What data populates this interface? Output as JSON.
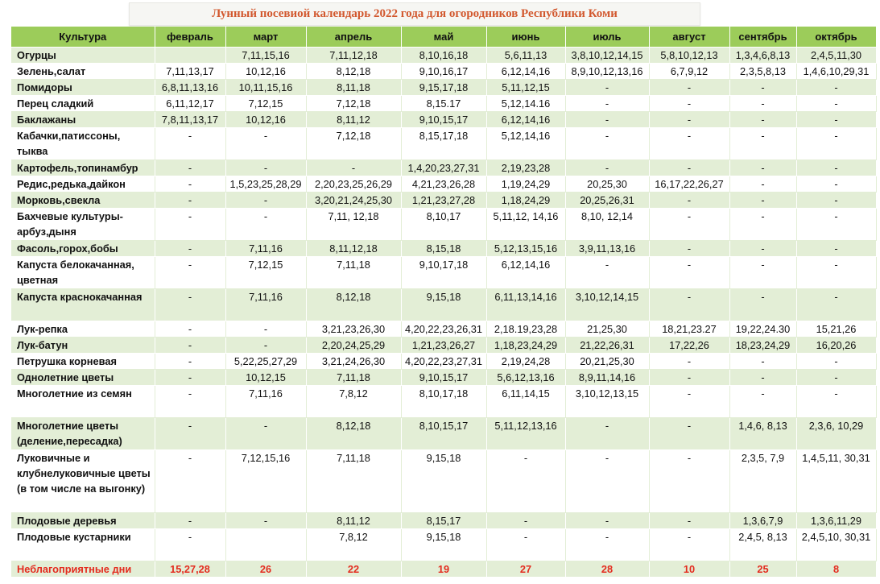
{
  "title": "Лунный посевиой календарь 2022 года для огородников Республики Коми",
  "headers": [
    "Культура",
    "февраль",
    "март",
    "апрель",
    "май",
    "июнь",
    "июль",
    "август",
    "сентябрь",
    "октябрь"
  ],
  "rows": [
    {
      "crop": "Огурцы",
      "cells": [
        "",
        "7,11,15,16",
        "7,11,12,18",
        "8,10,16,18",
        "5,6,11,13",
        "3,8,10,12,14,15",
        "5,8,10,12,13",
        "1,3,4,6,8,13",
        "2,4,5,11,30"
      ]
    },
    {
      "crop": "Зелень,салат",
      "cells": [
        "7,11,13,17",
        "10,12,16",
        "8,12,18",
        "9,10,16,17",
        "6,12,14,16",
        "8,9,10,12,13,16",
        "6,7,9,12",
        "2,3,5,8,13",
        "1,4,6,10,29,31"
      ]
    },
    {
      "crop": "Помидоры",
      "cells": [
        "6,8,11,13,16",
        "10,11,15,16",
        "8,11,18",
        "9,15,17,18",
        "5,11,12,15",
        "-",
        "-",
        "-",
        "-"
      ]
    },
    {
      "crop": "Перец сладкий",
      "cells": [
        "6,11,12,17",
        "7,12,15",
        "7,12,18",
        "8,15.17",
        "5,12,14.16",
        "-",
        "-",
        "-",
        "-"
      ]
    },
    {
      "crop": "Баклажаны",
      "cells": [
        "7,8,11,13,17",
        "10,12,16",
        "8,11,12",
        "9,10,15,17",
        "6,12,14,16",
        "-",
        "-",
        "-",
        "-"
      ]
    },
    {
      "crop": "Кабачки,патиссоны, тыква",
      "cells": [
        "-",
        "-",
        "7,12,18",
        "8,15,17,18",
        "5,12,14,16",
        "-",
        "-",
        "-",
        "-"
      ]
    },
    {
      "crop": "Картофель,топинамбур",
      "cells": [
        "-",
        "-",
        "-",
        "1,4,20,23,27,31",
        "2,19,23,28",
        "-",
        "-",
        "-",
        "-"
      ]
    },
    {
      "crop": "Редис,редька,дайкон",
      "cells": [
        "-",
        "1,5,23,25,28,29",
        "2,20,23,25,26,29",
        "4,21,23,26,28",
        "1,19,24,29",
        "20,25,30",
        "16,17,22,26,27",
        "-",
        "-"
      ]
    },
    {
      "crop": "Морковь,свекла",
      "cells": [
        "-",
        "-",
        "3,20,21,24,25,30",
        "1,21,23,27,28",
        "1,18,24,29",
        "20,25,26,31",
        "-",
        "-",
        "-"
      ]
    },
    {
      "crop": "Бахчевые культуры- арбуз,дыня",
      "cells": [
        "-",
        "-",
        "7,11, 12,18",
        "8,10,17",
        "5,11,12, 14,16",
        "8,10, 12,14",
        "-",
        "-",
        "-"
      ]
    },
    {
      "crop": "Фасоль,горох,бобы",
      "cells": [
        "-",
        "7,11,16",
        "8,11,12,18",
        "8,15,18",
        "5,12,13,15,16",
        "3,9,11,13,16",
        "-",
        "-",
        "-"
      ]
    },
    {
      "crop": "Капуста белокачанная, цветная",
      "cells": [
        "-",
        "7,12,15",
        "7,11,18",
        "9,10,17,18",
        "6,12,14,16",
        "-",
        "-",
        "-",
        "-"
      ]
    },
    {
      "crop": "Капуста краснокачанная",
      "cells": [
        "-",
        "7,11,16",
        "8,12,18",
        "9,15,18",
        "6,11,13,14,16",
        "3,10,12,14,15",
        "-",
        "-",
        "-"
      ]
    },
    {
      "crop": "Лук-репка",
      "cells": [
        "-",
        "-",
        "3,21,23,26,30",
        "4,20,22,23,26,31",
        "2,18.19,23,28",
        "21,25,30",
        "18,21,23.27",
        "19,22,24.30",
        "15,21,26"
      ]
    },
    {
      "crop": "Лук-батун",
      "cells": [
        "-",
        "-",
        "2,20,24,25,29",
        "1,21,23,26,27",
        "1,18,23,24,29",
        "21,22,26,31",
        "17,22,26",
        "18,23,24,29",
        "16,20,26"
      ]
    },
    {
      "crop": "Петрушка корневая",
      "cells": [
        "-",
        "5,22,25,27,29",
        "3,21,24,26,30",
        "4,20,22,23,27,31",
        "2,19,24,28",
        "20,21,25,30",
        "-",
        "-",
        "-"
      ]
    },
    {
      "crop": "Однолетние цветы",
      "cells": [
        "-",
        "10,12,15",
        "7,11,18",
        "9,10,15,17",
        "5,6,12,13,16",
        "8,9,11,14,16",
        "-",
        "-",
        "-"
      ]
    },
    {
      "crop": "Многолетние из семян",
      "cells": [
        "-",
        "7,11,16",
        "7,8,12",
        "8,10,17,18",
        "6,11,14,15",
        "3,10,12,13,15",
        "-",
        "-",
        "-"
      ]
    },
    {
      "crop": "Многолетние цветы (деление,пересадка)",
      "cells": [
        "-",
        "-",
        "8,12,18",
        "8,10,15,17",
        "5,11,12,13,16",
        "-",
        "-",
        "1,4,6, 8,13",
        "2,3,6, 10,29"
      ]
    },
    {
      "crop": "Луковичные и клубнелуковичные цветы (в том числе на выгонку)",
      "cells": [
        "-",
        "7,12,15,16",
        "7,11,18",
        "9,15,18",
        "-",
        "-",
        "-",
        "2,3,5, 7,9",
        "1,4,5,11, 30,31"
      ]
    },
    {
      "crop": "Плодовые деревья",
      "cells": [
        "-",
        "-",
        "8,11,12",
        "8,15,17",
        "-",
        "-",
        "-",
        "1,3,6,7,9",
        "1,3,6,11,29"
      ]
    },
    {
      "crop": "Плодовые кустарники",
      "cells": [
        "-",
        "",
        "7,8,12",
        "9,15,18",
        "-",
        "-",
        "-",
        "2,4,5, 8,13",
        "2,4,5,10, 30,31"
      ]
    }
  ],
  "unfavorable": {
    "label": "Неблагоприятные дни",
    "cells": [
      "15,27,28",
      "26",
      "22",
      "19",
      "27",
      "28",
      "10",
      "25",
      "8"
    ]
  }
}
